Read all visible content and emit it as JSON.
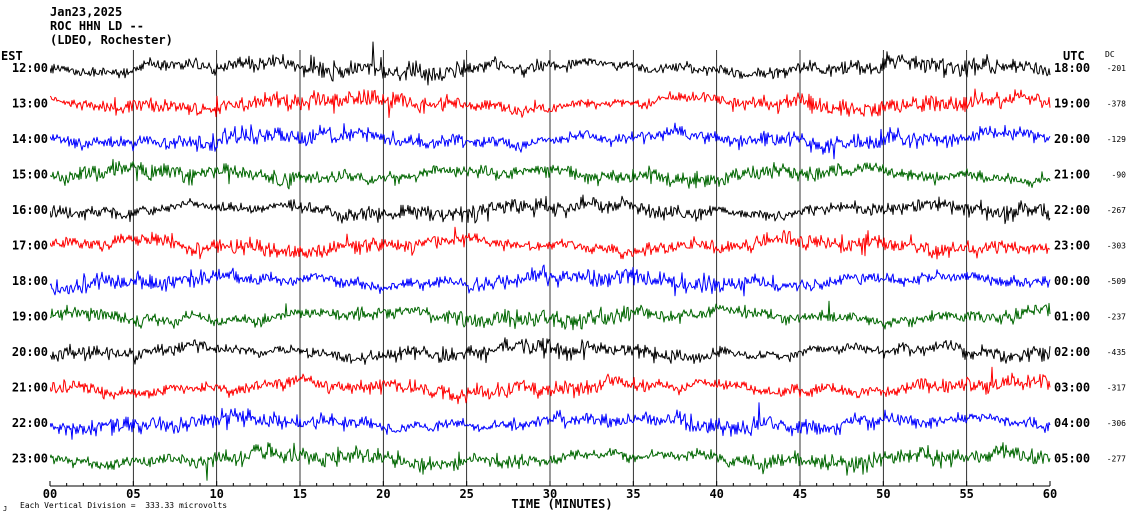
{
  "chart_data": {
    "type": "line",
    "title_lines": [
      "Jan23,2025",
      "ROC HHN LD --",
      "(LDEO, Rochester)"
    ],
    "left_timezone": "EST",
    "right_timezone": "UTC",
    "dc_header": "DC",
    "xlabel": "TIME (MINUTES)",
    "xlim": [
      0,
      60
    ],
    "x_ticks": [
      "00",
      "05",
      "10",
      "15",
      "20",
      "25",
      "30",
      "35",
      "40",
      "45",
      "50",
      "55",
      "60"
    ],
    "footer_note": "Each Vertical Division =  333.33 microvolts",
    "footer_mark": "J",
    "trace_colors": [
      "#000000",
      "#ff0000",
      "#0000ff",
      "#006600"
    ],
    "rows": [
      {
        "est": "12:00",
        "utc": "18:00",
        "dc": "-201"
      },
      {
        "est": "13:00",
        "utc": "19:00",
        "dc": "-378"
      },
      {
        "est": "14:00",
        "utc": "20:00",
        "dc": "-129"
      },
      {
        "est": "15:00",
        "utc": "21:00",
        "dc": "-90"
      },
      {
        "est": "16:00",
        "utc": "22:00",
        "dc": "-267"
      },
      {
        "est": "17:00",
        "utc": "23:00",
        "dc": "-303"
      },
      {
        "est": "18:00",
        "utc": "00:00",
        "dc": "-509"
      },
      {
        "est": "19:00",
        "utc": "01:00",
        "dc": "-237"
      },
      {
        "est": "20:00",
        "utc": "02:00",
        "dc": "-435"
      },
      {
        "est": "21:00",
        "utc": "03:00",
        "dc": "-317"
      },
      {
        "est": "22:00",
        "utc": "04:00",
        "dc": "-306"
      },
      {
        "est": "23:00",
        "utc": "05:00",
        "dc": "-277"
      }
    ]
  }
}
